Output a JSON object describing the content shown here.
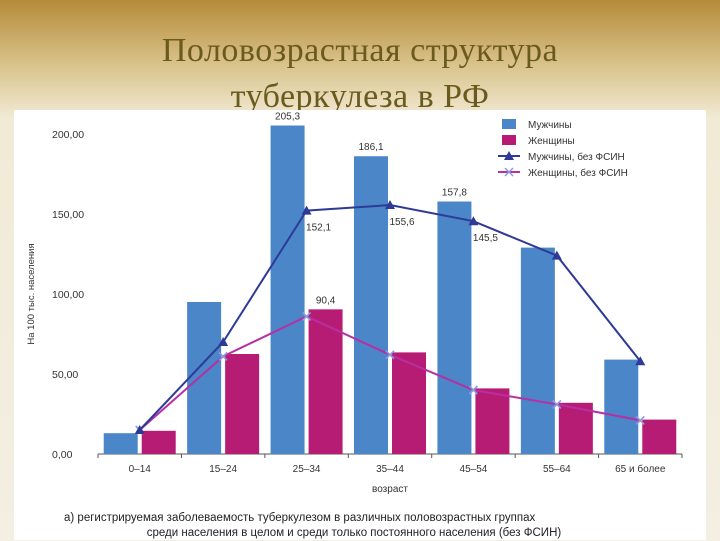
{
  "slide": {
    "title_line1": "Половозрастная структура",
    "title_line2": "туберкулеза в РФ"
  },
  "caption": {
    "line1": "а) регистрируемая заболеваемость туберкулезом в различных половозрастных группах",
    "line2": "среди населения в целом и среди только постоянного населения (без ФСИН)"
  },
  "colors": {
    "men_bar": "#4a86c8",
    "women_bar": "#b71c74",
    "men_line": "#2e3a96",
    "women_line": "#b72fa2",
    "title": "#6b5a1e"
  },
  "chart_data": {
    "type": "bar",
    "title": "",
    "xlabel": "возраст",
    "ylabel": "На 100 тыс. населения",
    "ylim": [
      0,
      200
    ],
    "y_ticks": [
      "0,00",
      "50,00",
      "100,00",
      "150,00",
      "200,00"
    ],
    "categories": [
      "0–14",
      "15–24",
      "25–34",
      "35–44",
      "45–54",
      "55–64",
      "65 и более"
    ],
    "series": [
      {
        "name": "Мужчины",
        "kind": "bar",
        "values": [
          13,
          95,
          205.3,
          186.1,
          157.8,
          129,
          59
        ]
      },
      {
        "name": "Женщины",
        "kind": "bar",
        "values": [
          14.5,
          62.5,
          90.4,
          63.5,
          41,
          32,
          21.5
        ]
      },
      {
        "name": "Мужчины, без ФСИН",
        "kind": "line",
        "marker": "triangle",
        "values": [
          15,
          70,
          152.1,
          155.6,
          145.5,
          124,
          58
        ]
      },
      {
        "name": "Женщины, без ФСИН",
        "kind": "line",
        "marker": "x",
        "values": [
          15,
          61,
          86,
          62,
          40,
          31,
          21
        ]
      }
    ],
    "data_labels": [
      {
        "series": 0,
        "index": 2,
        "text": "205,3"
      },
      {
        "series": 0,
        "index": 3,
        "text": "186,1"
      },
      {
        "series": 0,
        "index": 4,
        "text": "157,8"
      },
      {
        "series": 1,
        "index": 2,
        "text": "90,4"
      },
      {
        "series": 2,
        "index": 2,
        "text": "152,1"
      },
      {
        "series": 2,
        "index": 3,
        "text": "155,6"
      },
      {
        "series": 2,
        "index": 4,
        "text": "145,5"
      }
    ],
    "legend_position": "top-right",
    "grid": false
  }
}
